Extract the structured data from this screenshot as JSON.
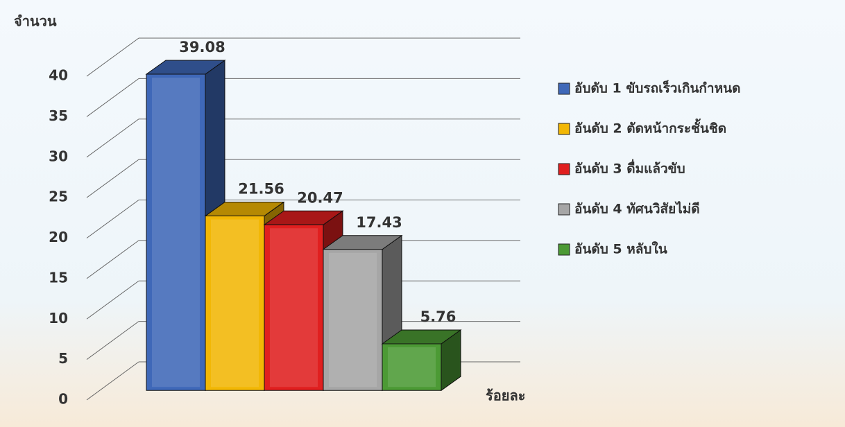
{
  "chart_data": {
    "type": "bar3d",
    "y_label": "จำนวน",
    "x_label": "ร้อยละ",
    "ylim": [
      0,
      40
    ],
    "yticks": [
      0,
      5,
      10,
      15,
      20,
      25,
      30,
      35,
      40
    ],
    "grid": true,
    "legend": "right",
    "series": [
      {
        "name": "อับดับ 1 ขับรถเร็วเกินกำหนด",
        "color": "#3f68b8",
        "values": [
          39.08
        ]
      },
      {
        "name": "อันดับ 2 ตัดหน้ากระชั้นชิด",
        "color": "#f2b705",
        "values": [
          21.56
        ]
      },
      {
        "name": "อันดับ 3 ดื่มแล้วขับ",
        "color": "#e01f1f",
        "values": [
          20.47
        ]
      },
      {
        "name": "อันดับ 4 ทัศนวิสัยไม่ดี",
        "color": "#a6a6a6",
        "values": [
          17.43
        ]
      },
      {
        "name": "อันดับ 5 หลับใน",
        "color": "#4c9a35",
        "values": [
          5.76
        ]
      }
    ]
  }
}
